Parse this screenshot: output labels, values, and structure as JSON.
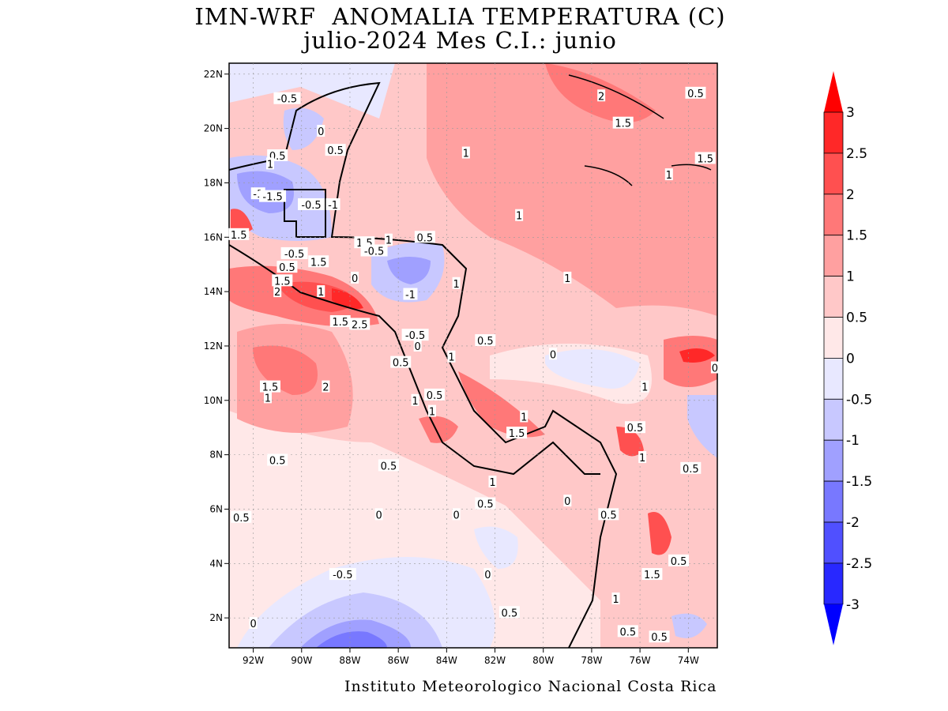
{
  "title": "IMN-WRF  ANOMALIA TEMPERATURA (C)",
  "subtitle": "julio-2024 Mes C.I.: junio",
  "credit": "Instituto Meteorologico Nacional Costa Rica",
  "map": {
    "lon_range": [
      -93,
      -72.8
    ],
    "lat_range": [
      0.9,
      22.4
    ],
    "x_ticks": [
      {
        "lon": -92,
        "label": "92W"
      },
      {
        "lon": -90,
        "label": "90W"
      },
      {
        "lon": -88,
        "label": "88W"
      },
      {
        "lon": -86,
        "label": "86W"
      },
      {
        "lon": -84,
        "label": "84W"
      },
      {
        "lon": -82,
        "label": "82W"
      },
      {
        "lon": -80,
        "label": "80W"
      },
      {
        "lon": -78,
        "label": "78W"
      },
      {
        "lon": -76,
        "label": "76W"
      },
      {
        "lon": -74,
        "label": "74W"
      }
    ],
    "y_ticks": [
      {
        "lat": 22,
        "label": "22N"
      },
      {
        "lat": 20,
        "label": "20N"
      },
      {
        "lat": 18,
        "label": "18N"
      },
      {
        "lat": 16,
        "label": "16N"
      },
      {
        "lat": 14,
        "label": "14N"
      },
      {
        "lat": 12,
        "label": "12N"
      },
      {
        "lat": 10,
        "label": "10N"
      },
      {
        "lat": 8,
        "label": "8N"
      },
      {
        "lat": 6,
        "label": "6N"
      },
      {
        "lat": 4,
        "label": "4N"
      },
      {
        "lat": 2,
        "label": "2N"
      }
    ],
    "contour_labels": [
      {
        "lon": -90.6,
        "lat": 21.1,
        "label": "-0.5"
      },
      {
        "lon": -89.2,
        "lat": 19.9,
        "label": "0"
      },
      {
        "lon": -88.6,
        "lat": 19.2,
        "label": "0.5"
      },
      {
        "lon": -91.0,
        "lat": 19.0,
        "label": "0.5"
      },
      {
        "lon": -91.3,
        "lat": 18.7,
        "label": "1"
      },
      {
        "lon": -91.8,
        "lat": 17.6,
        "label": "-1"
      },
      {
        "lon": -91.2,
        "lat": 17.5,
        "label": "-1.5"
      },
      {
        "lon": -89.6,
        "lat": 17.2,
        "label": "-0.5"
      },
      {
        "lon": -88.7,
        "lat": 17.2,
        "label": "-1"
      },
      {
        "lon": -92.6,
        "lat": 16.1,
        "label": "1.5"
      },
      {
        "lon": -90.3,
        "lat": 15.4,
        "label": "-0.5"
      },
      {
        "lon": -90.6,
        "lat": 14.9,
        "label": "0.5"
      },
      {
        "lon": -89.3,
        "lat": 15.1,
        "label": "1.5"
      },
      {
        "lon": -90.8,
        "lat": 14.4,
        "label": "1.5"
      },
      {
        "lon": -91.0,
        "lat": 14.0,
        "label": "2"
      },
      {
        "lon": -89.2,
        "lat": 14.0,
        "label": "1"
      },
      {
        "lon": -87.4,
        "lat": 15.8,
        "label": "1.5"
      },
      {
        "lon": -87.0,
        "lat": 15.5,
        "label": "-0.5"
      },
      {
        "lon": -86.4,
        "lat": 15.9,
        "label": "1"
      },
      {
        "lon": -84.9,
        "lat": 16.0,
        "label": "0.5"
      },
      {
        "lon": -87.8,
        "lat": 14.5,
        "label": "0"
      },
      {
        "lon": -85.5,
        "lat": 13.9,
        "label": "-1"
      },
      {
        "lon": -83.6,
        "lat": 14.3,
        "label": "1"
      },
      {
        "lon": -88.4,
        "lat": 12.9,
        "label": "1.5"
      },
      {
        "lon": -87.6,
        "lat": 12.8,
        "label": "2.5"
      },
      {
        "lon": -85.3,
        "lat": 12.4,
        "label": "-0.5"
      },
      {
        "lon": -85.2,
        "lat": 12.0,
        "label": "0"
      },
      {
        "lon": -85.9,
        "lat": 11.4,
        "label": "0.5"
      },
      {
        "lon": -83.8,
        "lat": 11.6,
        "label": "1"
      },
      {
        "lon": -82.4,
        "lat": 12.2,
        "label": "0.5"
      },
      {
        "lon": -84.5,
        "lat": 10.2,
        "label": "0.5"
      },
      {
        "lon": -85.3,
        "lat": 10.0,
        "label": "1"
      },
      {
        "lon": -84.6,
        "lat": 9.6,
        "label": "1"
      },
      {
        "lon": -81.1,
        "lat": 8.8,
        "label": "1.5"
      },
      {
        "lon": -80.8,
        "lat": 9.4,
        "label": "1"
      },
      {
        "lon": -82.1,
        "lat": 7.0,
        "label": "1"
      },
      {
        "lon": -82.4,
        "lat": 6.2,
        "label": "0.5"
      },
      {
        "lon": -79.0,
        "lat": 6.3,
        "label": "0"
      },
      {
        "lon": -91.3,
        "lat": 10.5,
        "label": "1.5"
      },
      {
        "lon": -91.4,
        "lat": 10.1,
        "label": "1"
      },
      {
        "lon": -89.0,
        "lat": 10.5,
        "label": "2"
      },
      {
        "lon": -91.0,
        "lat": 7.8,
        "label": "0.5"
      },
      {
        "lon": -86.4,
        "lat": 7.6,
        "label": "0.5"
      },
      {
        "lon": -92.5,
        "lat": 5.7,
        "label": "0.5"
      },
      {
        "lon": -86.8,
        "lat": 5.8,
        "label": "0"
      },
      {
        "lon": -83.6,
        "lat": 5.8,
        "label": "0"
      },
      {
        "lon": -88.3,
        "lat": 3.6,
        "label": "-0.5"
      },
      {
        "lon": -82.3,
        "lat": 3.6,
        "label": "0"
      },
      {
        "lon": -92.0,
        "lat": 1.8,
        "label": "0"
      },
      {
        "lon": -81.4,
        "lat": 2.2,
        "label": "0.5"
      },
      {
        "lon": -83.2,
        "lat": 19.1,
        "label": "1"
      },
      {
        "lon": -81.0,
        "lat": 16.8,
        "label": "1"
      },
      {
        "lon": -79.0,
        "lat": 14.5,
        "label": "1"
      },
      {
        "lon": -79.6,
        "lat": 11.7,
        "label": "0"
      },
      {
        "lon": -77.6,
        "lat": 21.2,
        "label": "2"
      },
      {
        "lon": -76.7,
        "lat": 20.2,
        "label": "1.5"
      },
      {
        "lon": -73.7,
        "lat": 21.3,
        "label": "0.5"
      },
      {
        "lon": -73.3,
        "lat": 18.9,
        "label": "1.5"
      },
      {
        "lon": -74.8,
        "lat": 18.3,
        "label": "1"
      },
      {
        "lon": -75.8,
        "lat": 10.5,
        "label": "1"
      },
      {
        "lon": -72.9,
        "lat": 11.2,
        "label": "0"
      },
      {
        "lon": -76.2,
        "lat": 9.0,
        "label": "0.5"
      },
      {
        "lon": -75.9,
        "lat": 7.9,
        "label": "1"
      },
      {
        "lon": -73.9,
        "lat": 7.5,
        "label": "0.5"
      },
      {
        "lon": -77.3,
        "lat": 5.8,
        "label": "0.5"
      },
      {
        "lon": -74.4,
        "lat": 4.1,
        "label": "0.5"
      },
      {
        "lon": -75.5,
        "lat": 3.6,
        "label": "1.5"
      },
      {
        "lon": -77.0,
        "lat": 2.7,
        "label": "1"
      },
      {
        "lon": -76.5,
        "lat": 1.5,
        "label": "0.5"
      },
      {
        "lon": -75.2,
        "lat": 1.3,
        "label": "0.5"
      }
    ]
  },
  "colorbar": {
    "labels": [
      "3",
      "2.5",
      "2",
      "1.5",
      "1",
      "0.5",
      "0",
      "-0.5",
      "-1",
      "-1.5",
      "-2",
      "-2.5",
      "-3"
    ],
    "colors": [
      "#ff0000",
      "#ff2828",
      "#ff5050",
      "#ff7878",
      "#ffa0a0",
      "#ffc8c8",
      "#ffe8e8",
      "#e8e8ff",
      "#c8c8ff",
      "#a0a0ff",
      "#7878ff",
      "#5050ff",
      "#2828ff",
      "#0000ff"
    ]
  }
}
